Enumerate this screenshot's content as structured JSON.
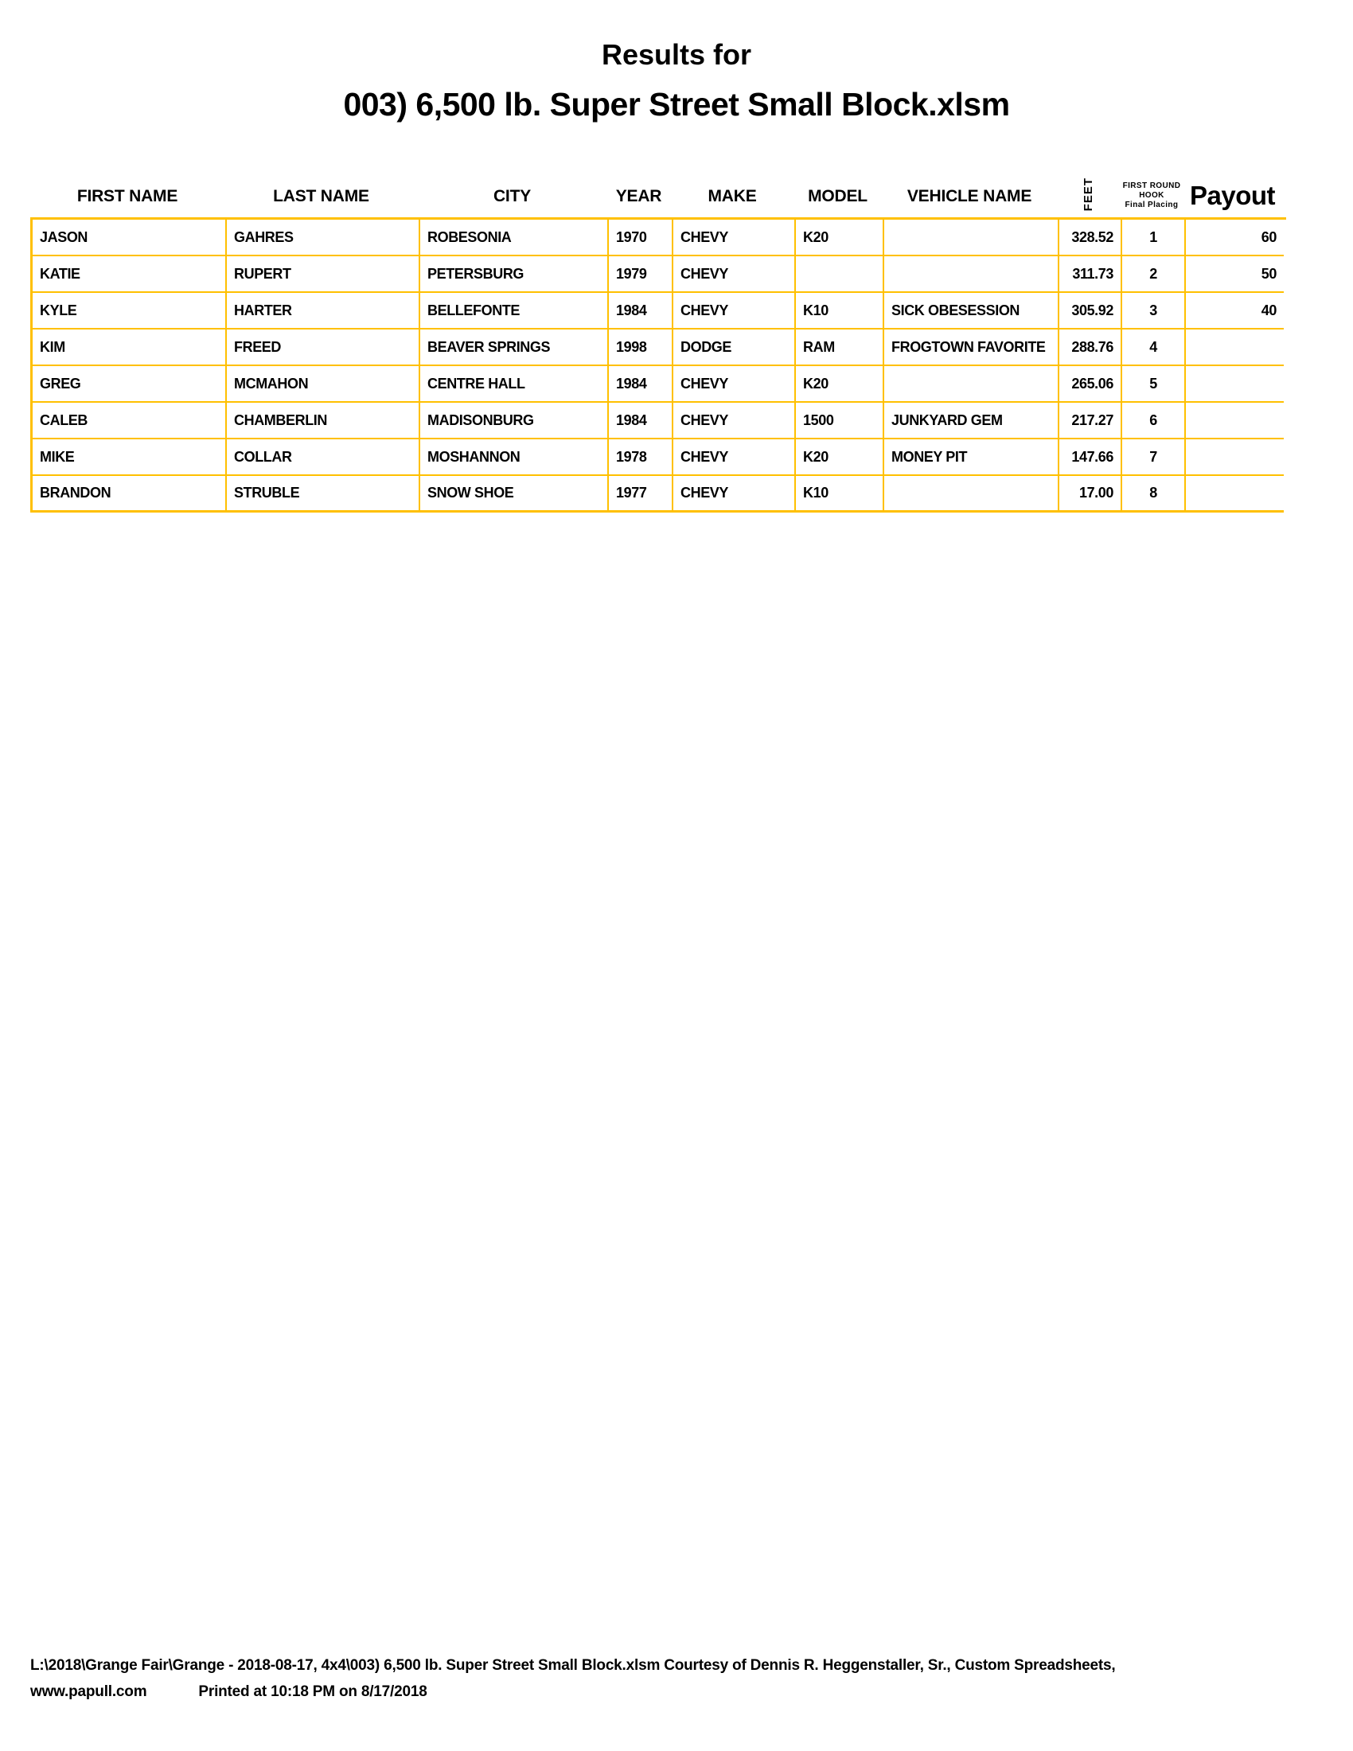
{
  "page": {
    "title_line1": "Results for",
    "title_line2": "003) 6,500 lb. Super Street Small Block.xlsm"
  },
  "colors": {
    "table_border": "#FFC000",
    "text": "#000000",
    "background": "#FFFFFF"
  },
  "table": {
    "headers": {
      "first_name": "FIRST NAME",
      "last_name": "LAST NAME",
      "city": "CITY",
      "year": "YEAR",
      "make": "MAKE",
      "model": "MODEL",
      "vehicle_name": "VEHICLE NAME",
      "feet": "FEET",
      "hook_line1": "FIRST ROUND",
      "hook_line2": "HOOK",
      "hook_line3": "Final Placing",
      "payout": "Payout"
    },
    "rows": [
      {
        "first_name": "JASON",
        "last_name": "GAHRES",
        "city": "ROBESONIA",
        "year": "1970",
        "make": "CHEVY",
        "model": "K20",
        "vehicle_name": "",
        "feet": "328.52",
        "placing": "1",
        "payout": "60"
      },
      {
        "first_name": "KATIE",
        "last_name": "RUPERT",
        "city": "PETERSBURG",
        "year": "1979",
        "make": "CHEVY",
        "model": "",
        "vehicle_name": "",
        "feet": "311.73",
        "placing": "2",
        "payout": "50"
      },
      {
        "first_name": "KYLE",
        "last_name": "HARTER",
        "city": "BELLEFONTE",
        "year": "1984",
        "make": "CHEVY",
        "model": "K10",
        "vehicle_name": "SICK OBESESSION",
        "feet": "305.92",
        "placing": "3",
        "payout": "40"
      },
      {
        "first_name": "KIM",
        "last_name": "FREED",
        "city": "BEAVER SPRINGS",
        "year": "1998",
        "make": "DODGE",
        "model": "RAM",
        "vehicle_name": "FROGTOWN FAVORITE",
        "feet": "288.76",
        "placing": "4",
        "payout": ""
      },
      {
        "first_name": "GREG",
        "last_name": "MCMAHON",
        "city": "CENTRE HALL",
        "year": "1984",
        "make": "CHEVY",
        "model": "K20",
        "vehicle_name": "",
        "feet": "265.06",
        "placing": "5",
        "payout": ""
      },
      {
        "first_name": "CALEB",
        "last_name": "CHAMBERLIN",
        "city": "MADISONBURG",
        "year": "1984",
        "make": "CHEVY",
        "model": "1500",
        "vehicle_name": "JUNKYARD GEM",
        "feet": "217.27",
        "placing": "6",
        "payout": ""
      },
      {
        "first_name": "MIKE",
        "last_name": "COLLAR",
        "city": "MOSHANNON",
        "year": "1978",
        "make": "CHEVY",
        "model": "K20",
        "vehicle_name": "MONEY PIT",
        "feet": "147.66",
        "placing": "7",
        "payout": ""
      },
      {
        "first_name": "BRANDON",
        "last_name": "STRUBLE",
        "city": "SNOW SHOE",
        "year": "1977",
        "make": "CHEVY",
        "model": "K10",
        "vehicle_name": "",
        "feet": "17.00",
        "placing": "8",
        "payout": ""
      }
    ]
  },
  "footer": {
    "line1": "L:\\2018\\Grange Fair\\Grange - 2018-08-17, 4x4\\003) 6,500 lb. Super Street Small Block.xlsm  Courtesy of Dennis R. Heggenstaller, Sr., Custom Spreadsheets,",
    "line2_left": "www.papull.com",
    "line2_right": "Printed at 10:18 PM on 8/17/2018"
  }
}
